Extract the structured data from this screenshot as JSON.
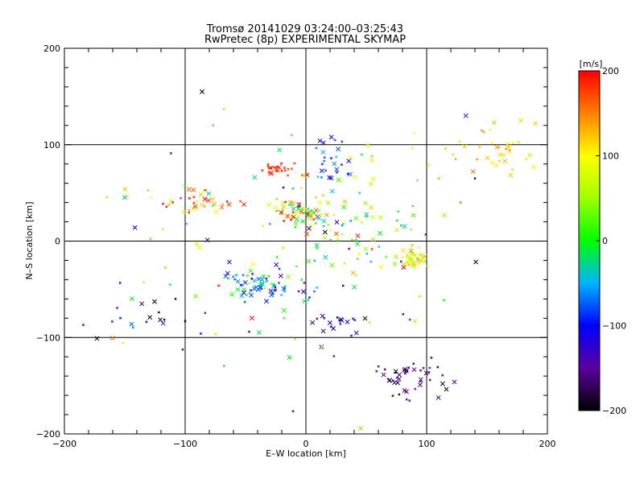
{
  "chart_data": {
    "type": "scatter",
    "title": "Tromsø 20141029 03:24:00–03:25:43",
    "subtitle": "RwPretec (8p) EXPERIMENTAL SKYMAP",
    "xlabel": "E–W location [km]",
    "ylabel": "N–S location [km]",
    "xlim": [
      -200,
      200
    ],
    "ylim": [
      -200,
      200
    ],
    "xticks": [
      -200,
      -100,
      0,
      100,
      200
    ],
    "yticks": [
      -200,
      -100,
      0,
      100,
      200
    ],
    "xtick_labels": [
      "−200",
      "−100",
      "0",
      "100",
      "200"
    ],
    "ytick_labels": [
      "−200",
      "−100",
      "0",
      "100",
      "200"
    ],
    "grid": true,
    "colorbar": {
      "label": "[m/s]",
      "range": [
        -200,
        200
      ],
      "ticks": [
        200,
        100,
        0,
        -100,
        -200
      ],
      "tick_labels": [
        "200",
        "100",
        "0",
        "−100",
        "−200"
      ]
    },
    "clusters": [
      {
        "cx": 88,
        "cy": -18,
        "sx": 6,
        "sy": 5,
        "n": 40,
        "vmean": 90,
        "vsd": 30
      },
      {
        "cx": -8,
        "cy": 32,
        "sx": 10,
        "sy": 6,
        "n": 45,
        "vmean": 90,
        "vsd": 90
      },
      {
        "cx": -35,
        "cy": -45,
        "sx": 18,
        "sy": 8,
        "n": 70,
        "vmean": -60,
        "vsd": 50
      },
      {
        "cx": 85,
        "cy": -140,
        "sx": 18,
        "sy": 10,
        "n": 45,
        "vmean": -170,
        "vsd": 15
      },
      {
        "cx": -25,
        "cy": 74,
        "sx": 8,
        "sy": 3,
        "n": 25,
        "vmean": 185,
        "vsd": 10
      },
      {
        "cx": 20,
        "cy": 85,
        "sx": 8,
        "sy": 10,
        "n": 25,
        "vmean": -80,
        "vsd": 25
      },
      {
        "cx": -90,
        "cy": 42,
        "sx": 25,
        "sy": 6,
        "n": 40,
        "vmean": 140,
        "vsd": 50
      },
      {
        "cx": 30,
        "cy": 15,
        "sx": 30,
        "sy": 30,
        "n": 80,
        "vmean": 40,
        "vsd": 60
      },
      {
        "cx": 155,
        "cy": 90,
        "sx": 20,
        "sy": 15,
        "n": 35,
        "vmean": 120,
        "vsd": 15
      },
      {
        "cx": 30,
        "cy": -85,
        "sx": 12,
        "sy": 8,
        "n": 20,
        "vmean": -150,
        "vsd": 30
      },
      {
        "cx": -140,
        "cy": -75,
        "sx": 25,
        "sy": 15,
        "n": 20,
        "vmean": -120,
        "vsd": 70
      },
      {
        "cx": 0,
        "cy": -10,
        "sx": 60,
        "sy": 55,
        "n": 90,
        "vmean": 0,
        "vsd": 110
      }
    ],
    "points": [
      {
        "x": -86,
        "y": 155,
        "v": -200
      },
      {
        "x": -68,
        "y": 137,
        "v": 50
      },
      {
        "x": 190,
        "y": 122,
        "v": 120
      },
      {
        "x": 178,
        "y": 125,
        "v": 118
      },
      {
        "x": 128,
        "y": 40,
        "v": 160
      },
      {
        "x": 140,
        "y": 65,
        "v": -180
      },
      {
        "x": 110,
        "y": 65,
        "v": 20
      },
      {
        "x": -173,
        "y": -101,
        "v": -200
      },
      {
        "x": -100,
        "y": -83,
        "v": -200
      },
      {
        "x": -108,
        "y": -60,
        "v": -200
      }
    ]
  }
}
